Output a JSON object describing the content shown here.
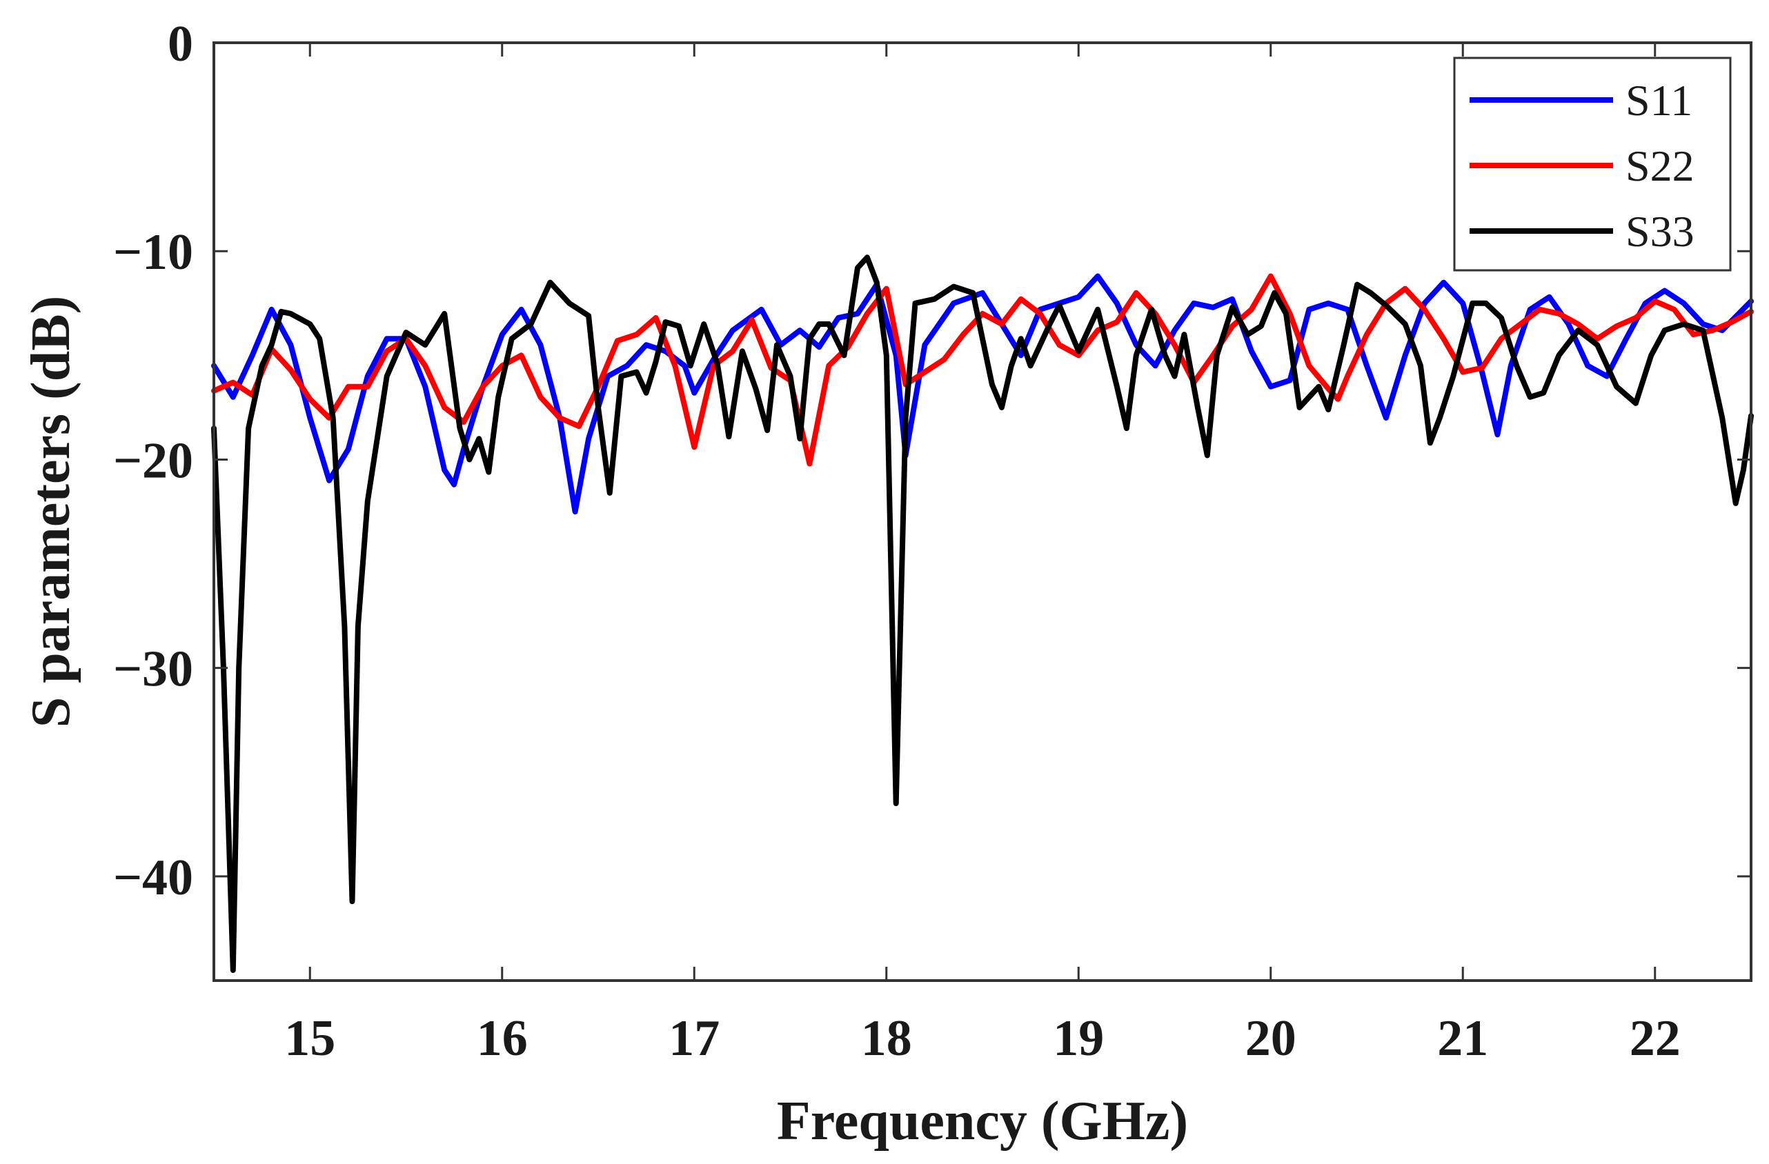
{
  "chart_data": {
    "type": "line",
    "title": "",
    "xlabel": "Frequency (GHz)",
    "ylabel": "S parameters (dB)",
    "xlim": [
      14.5,
      22.5
    ],
    "ylim": [
      -45,
      0
    ],
    "xticks": [
      15,
      16,
      17,
      18,
      19,
      20,
      21,
      22
    ],
    "yticks": [
      0,
      -10,
      -20,
      -30,
      -40
    ],
    "xtick_labels": [
      "15",
      "16",
      "17",
      "18",
      "19",
      "20",
      "21",
      "22"
    ],
    "ytick_labels": [
      "0",
      "−10",
      "−20",
      "−30",
      "−40"
    ],
    "grid": false,
    "legend_position": "top-right",
    "series": [
      {
        "name": "S11",
        "color": "#0000ff",
        "x": [
          14.5,
          14.6,
          14.7,
          14.8,
          14.9,
          15.0,
          15.1,
          15.2,
          15.3,
          15.4,
          15.5,
          15.6,
          15.7,
          15.75,
          15.8,
          15.9,
          16.0,
          16.1,
          16.2,
          16.3,
          16.38,
          16.45,
          16.55,
          16.65,
          16.75,
          16.85,
          16.95,
          17.0,
          17.1,
          17.2,
          17.35,
          17.45,
          17.55,
          17.65,
          17.75,
          17.85,
          17.95,
          18.05,
          18.1,
          18.2,
          18.35,
          18.5,
          18.6,
          18.7,
          18.8,
          18.9,
          19.0,
          19.1,
          19.2,
          19.3,
          19.4,
          19.5,
          19.6,
          19.7,
          19.8,
          19.9,
          20.0,
          20.1,
          20.2,
          20.3,
          20.4,
          20.5,
          20.6,
          20.7,
          20.8,
          20.9,
          21.0,
          21.1,
          21.18,
          21.25,
          21.35,
          21.45,
          21.55,
          21.65,
          21.75,
          21.85,
          21.95,
          22.05,
          22.15,
          22.25,
          22.35,
          22.5
        ],
        "y": [
          -15.5,
          -17.0,
          -15.0,
          -12.8,
          -14.5,
          -18.0,
          -21.0,
          -19.5,
          -16.0,
          -14.2,
          -14.2,
          -16.5,
          -20.5,
          -21.2,
          -19.5,
          -16.5,
          -14.0,
          -12.8,
          -14.5,
          -18.0,
          -22.5,
          -19.0,
          -16.0,
          -15.5,
          -14.5,
          -14.8,
          -15.5,
          -16.8,
          -15.2,
          -13.8,
          -12.8,
          -14.5,
          -13.8,
          -14.6,
          -13.2,
          -13.0,
          -11.6,
          -15.0,
          -19.8,
          -14.5,
          -12.5,
          -12.0,
          -13.5,
          -15.0,
          -12.8,
          -12.5,
          -12.2,
          -11.2,
          -12.5,
          -14.5,
          -15.5,
          -13.8,
          -12.5,
          -12.7,
          -12.3,
          -14.8,
          -16.5,
          -16.2,
          -12.8,
          -12.5,
          -12.8,
          -15.5,
          -18.0,
          -15.0,
          -12.5,
          -11.5,
          -12.5,
          -15.8,
          -18.8,
          -15.5,
          -12.8,
          -12.2,
          -13.5,
          -15.5,
          -16.0,
          -14.2,
          -12.5,
          -11.9,
          -12.5,
          -13.5,
          -13.8,
          -12.4
        ]
      },
      {
        "name": "S22",
        "color": "#ff0000",
        "x": [
          14.5,
          14.6,
          14.7,
          14.8,
          14.9,
          15.0,
          15.1,
          15.2,
          15.3,
          15.4,
          15.5,
          15.6,
          15.7,
          15.8,
          15.9,
          16.0,
          16.1,
          16.2,
          16.3,
          16.4,
          16.5,
          16.6,
          16.7,
          16.8,
          16.9,
          17.0,
          17.1,
          17.2,
          17.3,
          17.4,
          17.5,
          17.6,
          17.7,
          17.8,
          17.9,
          18.0,
          18.1,
          18.2,
          18.3,
          18.4,
          18.5,
          18.6,
          18.7,
          18.8,
          18.9,
          19.0,
          19.1,
          19.2,
          19.3,
          19.4,
          19.5,
          19.6,
          19.7,
          19.8,
          19.9,
          20.0,
          20.1,
          20.2,
          20.3,
          20.35,
          20.4,
          20.5,
          20.6,
          20.7,
          20.8,
          20.9,
          21.0,
          21.1,
          21.2,
          21.3,
          21.4,
          21.5,
          21.6,
          21.7,
          21.8,
          21.9,
          22.0,
          22.1,
          22.2,
          22.3,
          22.4,
          22.5
        ],
        "y": [
          -16.7,
          -16.3,
          -16.9,
          -14.7,
          -15.7,
          -17.1,
          -18.0,
          -16.5,
          -16.5,
          -14.8,
          -14.2,
          -15.5,
          -17.5,
          -18.2,
          -16.5,
          -15.5,
          -15.0,
          -17.0,
          -18.0,
          -18.4,
          -16.5,
          -14.3,
          -14.0,
          -13.2,
          -15.5,
          -19.4,
          -15.5,
          -14.8,
          -13.3,
          -15.6,
          -16.2,
          -20.2,
          -15.5,
          -14.6,
          -13.0,
          -11.8,
          -16.4,
          -15.8,
          -15.2,
          -14.0,
          -13.0,
          -13.5,
          -12.3,
          -13.0,
          -14.5,
          -15.0,
          -13.8,
          -13.4,
          -12.0,
          -13.0,
          -14.5,
          -16.3,
          -15.0,
          -13.6,
          -12.8,
          -11.2,
          -13.0,
          -15.5,
          -16.6,
          -17.1,
          -16.0,
          -14.0,
          -12.5,
          -11.8,
          -12.8,
          -14.2,
          -15.8,
          -15.6,
          -14.2,
          -13.5,
          -12.8,
          -13.0,
          -13.5,
          -14.2,
          -13.6,
          -13.2,
          -12.4,
          -12.8,
          -14.0,
          -13.8,
          -13.4,
          -12.9
        ]
      },
      {
        "name": "S33",
        "color": "#000000",
        "x": [
          14.5,
          14.55,
          14.6,
          14.63,
          14.68,
          14.75,
          14.8,
          14.85,
          14.9,
          15.0,
          15.05,
          15.12,
          15.18,
          15.22,
          15.25,
          15.3,
          15.4,
          15.5,
          15.6,
          15.7,
          15.78,
          15.83,
          15.88,
          15.93,
          15.98,
          16.05,
          16.15,
          16.25,
          16.35,
          16.45,
          16.5,
          16.56,
          16.62,
          16.7,
          16.75,
          16.8,
          16.85,
          16.92,
          16.98,
          17.05,
          17.12,
          17.18,
          17.25,
          17.32,
          17.38,
          17.43,
          17.5,
          17.55,
          17.6,
          17.65,
          17.7,
          17.78,
          17.85,
          17.9,
          17.95,
          18.0,
          18.05,
          18.1,
          18.15,
          18.25,
          18.35,
          18.45,
          18.55,
          18.6,
          18.65,
          18.7,
          18.75,
          18.8,
          18.85,
          18.9,
          19.0,
          19.1,
          19.2,
          19.25,
          19.3,
          19.38,
          19.45,
          19.5,
          19.55,
          19.62,
          19.67,
          19.72,
          19.8,
          19.88,
          19.95,
          20.02,
          20.08,
          20.15,
          20.25,
          20.3,
          20.38,
          20.45,
          20.52,
          20.6,
          20.7,
          20.78,
          20.83,
          20.88,
          20.95,
          21.05,
          21.12,
          21.2,
          21.28,
          21.35,
          21.42,
          21.5,
          21.6,
          21.7,
          21.8,
          21.9,
          21.98,
          22.05,
          22.15,
          22.25,
          22.35,
          22.42,
          22.46,
          22.5
        ],
        "y": [
          -18.5,
          -30.0,
          -44.5,
          -30.0,
          -18.5,
          -15.5,
          -14.5,
          -12.9,
          -13.0,
          -13.5,
          -14.2,
          -18.0,
          -28.0,
          -41.2,
          -28.0,
          -22.0,
          -16.0,
          -13.9,
          -14.5,
          -13.0,
          -18.5,
          -20.0,
          -19.0,
          -20.6,
          -17.0,
          -14.2,
          -13.5,
          -11.5,
          -12.5,
          -13.1,
          -17.5,
          -21.6,
          -16.0,
          -15.8,
          -16.8,
          -15.3,
          -13.4,
          -13.6,
          -15.5,
          -13.5,
          -15.4,
          -18.9,
          -14.8,
          -16.6,
          -18.6,
          -14.5,
          -16.0,
          -19.0,
          -14.2,
          -13.5,
          -13.5,
          -15.0,
          -10.8,
          -10.3,
          -11.5,
          -15.0,
          -36.5,
          -18.0,
          -12.5,
          -12.3,
          -11.7,
          -12.0,
          -16.4,
          -17.5,
          -15.5,
          -14.2,
          -15.5,
          -14.5,
          -13.5,
          -12.6,
          -14.8,
          -12.8,
          -16.5,
          -18.5,
          -15.0,
          -12.8,
          -15.0,
          -16.0,
          -14.0,
          -17.5,
          -19.8,
          -15.0,
          -12.7,
          -14.0,
          -13.6,
          -12.0,
          -13.0,
          -17.5,
          -16.5,
          -17.6,
          -14.5,
          -11.6,
          -12.0,
          -12.6,
          -13.5,
          -15.5,
          -19.2,
          -18.0,
          -16.0,
          -12.5,
          -12.5,
          -13.2,
          -15.5,
          -17.0,
          -16.8,
          -15.0,
          -13.8,
          -14.5,
          -16.5,
          -17.3,
          -15.0,
          -13.8,
          -13.5,
          -13.8,
          -18.0,
          -22.1,
          -20.5,
          -17.9
        ]
      }
    ]
  }
}
